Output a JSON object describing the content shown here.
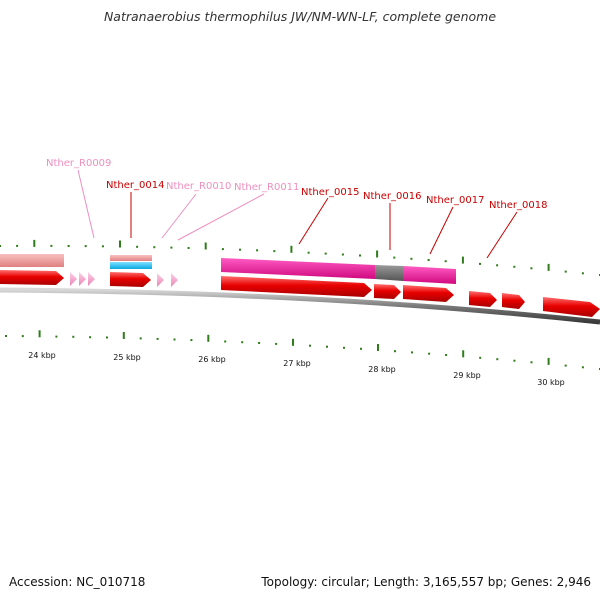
{
  "title": "Natranaerobius thermophilus JW/NM-WN-LF, complete genome",
  "footer": {
    "accession": "Accession: NC_010718",
    "topology": "Topology: circular; Length: 3,165,557 bp; Genes: 2,946"
  },
  "colors": {
    "backbone": "#6d6d6d",
    "tick": "#2e7d1a",
    "cds": "#e00000",
    "rna_feature": "#f39fc8",
    "gene_label": "#c80000",
    "rna_label": "#ef8fbf",
    "rrna_band": "#f2a0a0",
    "trna_band": "#12b4e8",
    "repeat_band": "#e0129a",
    "gap_band": "#6a6a6a"
  },
  "scale_labels": [
    "24 kbp",
    "25 kbp",
    "26 kbp",
    "27 kbp",
    "28 kbp",
    "29 kbp",
    "30 kbp"
  ],
  "feature_labels": [
    {
      "text": "Nther_R0009",
      "kind": "rna"
    },
    {
      "text": "Nther_0014",
      "kind": "gene"
    },
    {
      "text": "Nther_R0010",
      "kind": "rna"
    },
    {
      "text": "Nther_R0011",
      "kind": "rna"
    },
    {
      "text": "Nther_0015",
      "kind": "gene"
    },
    {
      "text": "Nther_0016",
      "kind": "gene"
    },
    {
      "text": "Nther_0017",
      "kind": "gene"
    },
    {
      "text": "Nther_0018",
      "kind": "gene"
    }
  ]
}
